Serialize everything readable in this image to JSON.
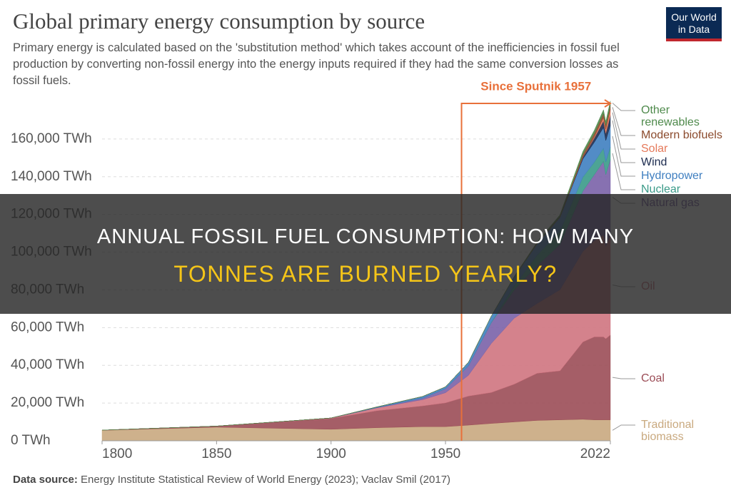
{
  "header": {
    "subtitle": "Primary energy is calculated based on the 'substitution method' which takes account of the inefficiencies in fossil fuel production by converting non-fossil energy into the energy inputs required if they had the same conversion losses as fossil fuels.",
    "logo": "Our World in Data"
  },
  "overlay": {
    "line1": "ANNUAL FOSSIL FUEL CONSUMPTION: HOW MANY",
    "line2": "TONNES ARE BURNED YEARLY?"
  },
  "footer": {
    "label": "Data source:",
    "text": "Energy Institute Statistical Review of World Energy (2023); Vaclav Smil (2017)"
  },
  "chart_data": {
    "type": "stacked-area",
    "title": "Global primary energy consumption by source",
    "x": [
      1800,
      1850,
      1900,
      1920,
      1940,
      1950,
      1960,
      1970,
      1980,
      1990,
      2000,
      2010,
      2015,
      2019,
      2020,
      2022
    ],
    "series": [
      {
        "name": "Traditional biomass",
        "color": "#c9a97f",
        "values": [
          5556,
          7222,
          6111,
          6944,
          7500,
          7500,
          8300,
          9200,
          10000,
          10800,
          11100,
          11400,
          11100,
          11100,
          11111,
          11111
        ]
      },
      {
        "name": "Coal",
        "color": "#9b4c56",
        "values": [
          97,
          569,
          5728,
          9000,
          11000,
          12600,
          15400,
          16400,
          20000,
          25000,
          26000,
          41000,
          44000,
          44000,
          43000,
          45000
        ]
      },
      {
        "name": "Oil",
        "color": "#cf7480",
        "values": [
          0,
          0,
          181,
          1500,
          3300,
          5400,
          11000,
          26000,
          35000,
          37000,
          43000,
          48000,
          51000,
          54000,
          49000,
          53000
        ]
      },
      {
        "name": "Natural gas",
        "color": "#7a62a8",
        "values": [
          0,
          0,
          64,
          200,
          800,
          2100,
          5000,
          11000,
          15000,
          20000,
          24000,
          32000,
          35000,
          39000,
          38000,
          40000
        ]
      },
      {
        "name": "Nuclear",
        "color": "#3a9a88",
        "values": [
          0,
          0,
          0,
          0,
          0,
          0,
          0,
          200,
          2000,
          5600,
          7000,
          7400,
          6600,
          7000,
          6800,
          6700
        ]
      },
      {
        "name": "Hydropower",
        "color": "#3f7fc0",
        "values": [
          0,
          0,
          0,
          300,
          900,
          1000,
          1900,
          3300,
          4800,
          6000,
          7400,
          9600,
          10600,
          11000,
          11300,
          11400
        ]
      },
      {
        "name": "Wind",
        "color": "#1c2b4f",
        "values": [
          0,
          0,
          0,
          0,
          0,
          0,
          0,
          0,
          0,
          10,
          90,
          900,
          2200,
          3500,
          3900,
          5200
        ]
      },
      {
        "name": "Solar",
        "color": "#e5795a",
        "values": [
          0,
          0,
          0,
          0,
          0,
          0,
          0,
          0,
          0,
          0,
          5,
          80,
          650,
          1800,
          2100,
          3300
        ]
      },
      {
        "name": "Modern biofuels",
        "color": "#8b4a2c",
        "values": [
          0,
          0,
          0,
          0,
          0,
          0,
          0,
          0,
          0,
          300,
          300,
          1500,
          1800,
          2200,
          2000,
          2300
        ]
      },
      {
        "name": "Other renewables",
        "color": "#4f8a4c",
        "values": [
          0,
          0,
          0,
          0,
          0,
          0,
          0,
          0,
          300,
          600,
          900,
          1500,
          1700,
          1900,
          2000,
          2100
        ]
      }
    ],
    "xlim": [
      1800,
      2022
    ],
    "xticks": [
      1800,
      1850,
      1900,
      1950,
      2022
    ],
    "ylim": [
      0,
      180000
    ],
    "yticks": [
      {
        "value": 0,
        "label": "0 TWh"
      },
      {
        "value": 20000,
        "label": "20,000 TWh"
      },
      {
        "value": 40000,
        "label": "40,000 TWh"
      },
      {
        "value": 60000,
        "label": "60,000 TWh"
      },
      {
        "value": 80000,
        "label": "80,000 TWh"
      },
      {
        "value": 100000,
        "label": "100,000 TWh"
      },
      {
        "value": 120000,
        "label": "120,000 TWh"
      },
      {
        "value": 140000,
        "label": "140,000 TWh"
      },
      {
        "value": 160000,
        "label": "160,000 TWh"
      }
    ],
    "grid": true,
    "annotation": {
      "text": "Since Sputnik 1957",
      "x": 1957,
      "color": "#e8703a"
    }
  }
}
